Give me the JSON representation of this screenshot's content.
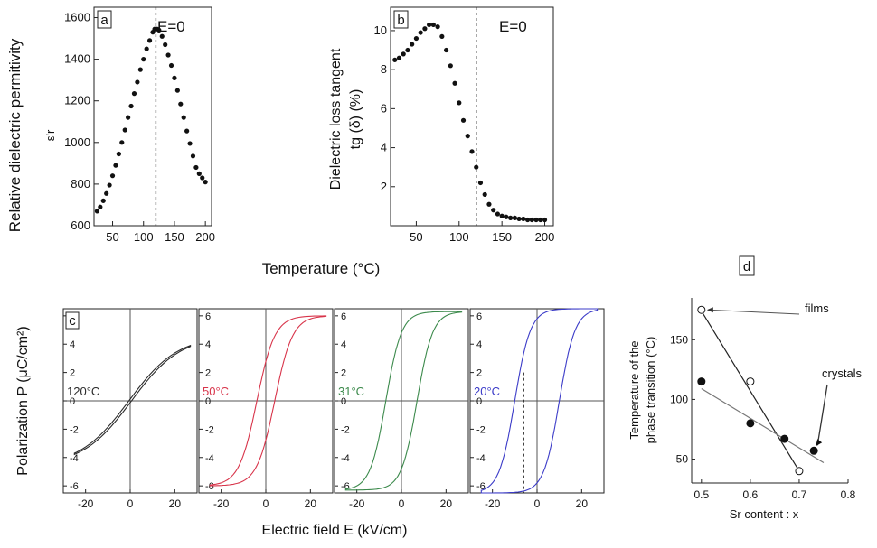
{
  "chart_data": [
    {
      "id": "a",
      "type": "scatter",
      "panel_label": "a",
      "annotation": "E=0",
      "ylabel_lines": [
        "Relative dielectric permitivity"
      ],
      "ysymbol": "ε'r",
      "xlim": [
        20,
        210
      ],
      "ylim": [
        600,
        1650
      ],
      "xticks": [
        50,
        100,
        150,
        200
      ],
      "yticks": [
        600,
        800,
        1000,
        1200,
        1400,
        1600
      ],
      "vline": 120,
      "x": [
        25,
        30,
        35,
        40,
        45,
        50,
        55,
        60,
        65,
        70,
        75,
        80,
        85,
        90,
        95,
        100,
        105,
        110,
        115,
        118,
        122,
        125,
        130,
        135,
        140,
        145,
        150,
        155,
        160,
        165,
        170,
        175,
        180,
        185,
        190,
        195,
        200
      ],
      "y": [
        670,
        690,
        720,
        755,
        795,
        840,
        890,
        945,
        1000,
        1060,
        1120,
        1175,
        1235,
        1290,
        1350,
        1400,
        1450,
        1490,
        1530,
        1545,
        1545,
        1540,
        1510,
        1470,
        1420,
        1370,
        1310,
        1250,
        1185,
        1120,
        1055,
        995,
        935,
        880,
        850,
        830,
        810
      ]
    },
    {
      "id": "b",
      "type": "scatter",
      "panel_label": "b",
      "annotation": "E=0",
      "ylabel_lines": [
        "Dielectric loss tangent",
        "tg (δ) (%)"
      ],
      "xlim": [
        20,
        210
      ],
      "ylim": [
        0,
        11.2
      ],
      "xticks": [
        50,
        100,
        150,
        200
      ],
      "yticks": [
        2,
        4,
        6,
        8,
        10
      ],
      "vline": 120,
      "x": [
        25,
        30,
        35,
        40,
        45,
        50,
        55,
        60,
        65,
        70,
        75,
        80,
        85,
        90,
        95,
        100,
        105,
        110,
        115,
        120,
        125,
        130,
        135,
        140,
        145,
        150,
        155,
        160,
        165,
        170,
        175,
        180,
        185,
        190,
        195,
        200
      ],
      "y": [
        8.5,
        8.6,
        8.8,
        9.0,
        9.3,
        9.6,
        9.9,
        10.1,
        10.3,
        10.3,
        10.2,
        9.7,
        9.0,
        8.2,
        7.3,
        6.3,
        5.4,
        4.6,
        3.8,
        3.0,
        2.2,
        1.6,
        1.1,
        0.8,
        0.6,
        0.5,
        0.45,
        0.4,
        0.4,
        0.35,
        0.35,
        0.3,
        0.3,
        0.3,
        0.3,
        0.3
      ]
    },
    {
      "id": "c",
      "type": "line",
      "panel_label": "c",
      "xlabel": "Electric field E (kV/cm)",
      "ylabel": "Polarization   P (μC/cm²)",
      "xlim": [
        -30,
        30
      ],
      "ylim": [
        -6.5,
        6.5
      ],
      "xticks": [
        -20,
        0,
        20
      ],
      "yticks": [
        -6,
        -4,
        -2,
        0,
        2,
        4,
        6
      ],
      "series": [
        {
          "name": "120°C",
          "color": "#2a2a2a",
          "ps": 4.6,
          "ec": 0.6,
          "w": 22
        },
        {
          "name": "50°C",
          "color": "#d8344a",
          "ps": 6.0,
          "ec": 4.0,
          "w": 8
        },
        {
          "name": "31°C",
          "color": "#3c8a4c",
          "ps": 6.3,
          "ec": 7.0,
          "w": 7
        },
        {
          "name": "20°C",
          "color": "#3b3bc8",
          "ps": 6.5,
          "ec": 10.0,
          "w": 7,
          "vline": -6
        }
      ]
    },
    {
      "id": "d",
      "type": "scatter",
      "panel_label": "d",
      "xlabel": "Sr content : x",
      "ylabel_lines": [
        "Temperature of the",
        "phase transition (°C)"
      ],
      "xlim": [
        0.48,
        0.8
      ],
      "ylim": [
        30,
        185
      ],
      "xticks": [
        0.5,
        0.6,
        0.7,
        0.8
      ],
      "yticks": [
        50,
        100,
        150
      ],
      "series": [
        {
          "name": "films",
          "marker": "open",
          "x": [
            0.5,
            0.6,
            0.7
          ],
          "y": [
            175,
            115,
            40
          ],
          "fit": [
            [
              0.5,
              174
            ],
            [
              0.7,
              40
            ]
          ]
        },
        {
          "name": "crystals",
          "marker": "filled",
          "x": [
            0.5,
            0.6,
            0.67,
            0.73
          ],
          "y": [
            115,
            80,
            67,
            57
          ],
          "fit": [
            [
              0.5,
              109
            ],
            [
              0.75,
              47
            ]
          ]
        }
      ]
    }
  ],
  "shared": {
    "xlabel_ab": "Temperature (°C)"
  }
}
